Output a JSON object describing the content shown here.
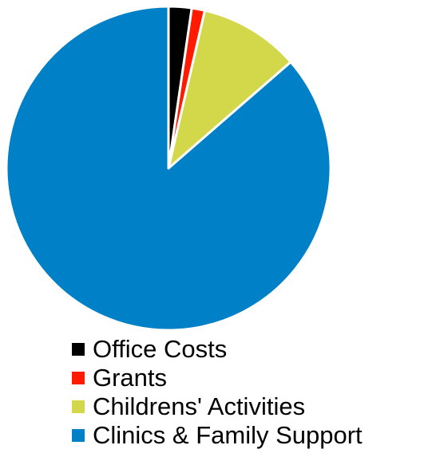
{
  "chart_data": {
    "type": "pie",
    "categories": [
      "Office Costs",
      "Grants",
      "Childrens' Activities",
      "Clinics & Family Support"
    ],
    "values": [
      2.3,
      1.3,
      10.0,
      86.4
    ],
    "colors": [
      "#000000",
      "#ff1a00",
      "#d3d84a",
      "#0080c6"
    ],
    "start_angle_deg": 0,
    "direction": "clockwise",
    "legend_position": "bottom",
    "title": ""
  },
  "legend": {
    "items": [
      {
        "label": "Office Costs",
        "color": "#000000"
      },
      {
        "label": "Grants",
        "color": "#ff1a00"
      },
      {
        "label": "Childrens' Activities",
        "color": "#d3d84a"
      },
      {
        "label": "Clinics & Family Support",
        "color": "#0080c6"
      }
    ]
  }
}
